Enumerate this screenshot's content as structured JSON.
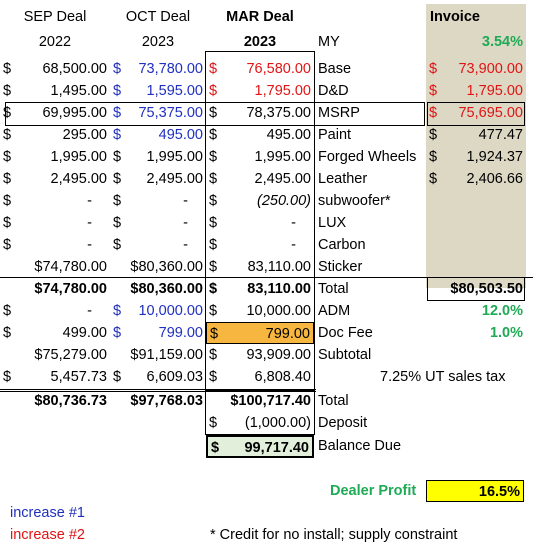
{
  "headers": {
    "sep": "SEP Deal",
    "oct": "OCT Deal",
    "mar": "MAR Deal",
    "invoice": "Invoice",
    "years": [
      "2022",
      "2023",
      "2023"
    ],
    "my_label": "MY",
    "my_pct": "3.54%"
  },
  "rows": [
    {
      "label": "Base",
      "sep": "68,500.00",
      "oct": "73,780.00",
      "mar": "76,580.00",
      "inv": "73,900.00"
    },
    {
      "label": "D&D",
      "sep": "1,495.00",
      "oct": "1,595.00",
      "mar": "1,795.00",
      "inv": "1,795.00"
    },
    {
      "label": "MSRP",
      "sep": "69,995.00",
      "oct": "75,375.00",
      "mar": "78,375.00",
      "inv": "75,695.00"
    },
    {
      "label": "Paint",
      "sep": "295.00",
      "oct": "495.00",
      "mar": "495.00",
      "inv": "477.47"
    },
    {
      "label": "Forged Wheels",
      "sep": "1,995.00",
      "oct": "1,995.00",
      "mar": "1,995.00",
      "inv": "1,924.37"
    },
    {
      "label": "Leather",
      "sep": "2,495.00",
      "oct": "2,495.00",
      "mar": "2,495.00",
      "inv": "2,406.66"
    },
    {
      "label": "subwoofer*",
      "sep": "-",
      "oct": "-",
      "mar": "(250.00)",
      "inv": ""
    },
    {
      "label": "LUX",
      "sep": "-",
      "oct": "-",
      "mar": "-",
      "inv": ""
    },
    {
      "label": "Carbon",
      "sep": "-",
      "oct": "-",
      "mar": "-",
      "inv": ""
    },
    {
      "label": "Sticker",
      "sep": "74,780.00",
      "oct": "80,360.00",
      "mar": "83,110.00",
      "inv": ""
    }
  ],
  "total1": {
    "label": "Total",
    "sep": "$74,780.00",
    "oct": "$80,360.00",
    "mar": "83,110.00",
    "inv": "$80,503.50"
  },
  "adm": {
    "label": "ADM",
    "sep": "-",
    "oct": "10,000.00",
    "mar": "10,000.00",
    "pct": "12.0%"
  },
  "docfee": {
    "label": "Doc Fee",
    "sep": "499.00",
    "oct": "799.00",
    "mar": "799.00",
    "pct": "1.0%"
  },
  "subtotal": {
    "label": "Subtotal",
    "sep": "$75,279.00",
    "oct": "$91,159.00",
    "mar": "93,909.00"
  },
  "tax": {
    "sep": "5,457.73",
    "oct": "6,609.03",
    "mar": "6,808.40",
    "note": "7.25%  UT sales tax"
  },
  "total2": {
    "label": "Total",
    "sep": "$80,736.73",
    "oct": "$97,768.03",
    "mar": "$100,717.40"
  },
  "deposit": {
    "label": "Deposit",
    "mar": "(1,000.00)"
  },
  "balance": {
    "label": "Balance Due",
    "mar": "99,717.40"
  },
  "dealer_profit": {
    "label": "Dealer Profit",
    "value": "16.5%"
  },
  "legend": {
    "inc1": "increase #1",
    "inc2": "increase #2",
    "credit": "* Credit for no install; supply constraint"
  },
  "currency": "$",
  "colors": {
    "increase1": "#1f2fbf",
    "increase2": "#e01414",
    "green": "#1faa55",
    "invoice_bg": "#dcd8c4",
    "profit_bg": "#ffff00",
    "docfee_bg": "#f7b63f",
    "balance_bg": "#e2efda"
  }
}
